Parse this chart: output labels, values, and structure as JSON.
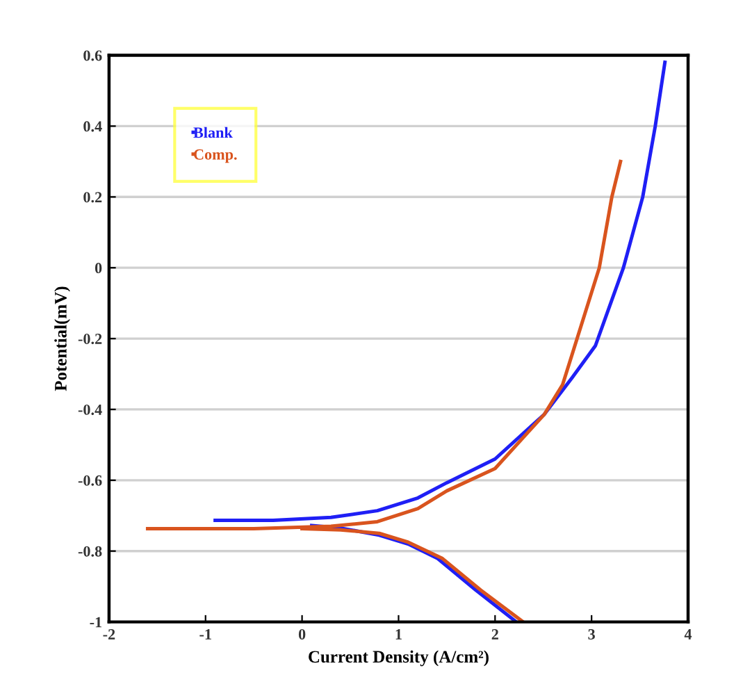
{
  "chart_data": {
    "type": "line",
    "xlabel": "Current Density (A/cm²)",
    "ylabel": "Potential(mV)",
    "xlim": [
      -2,
      4
    ],
    "xticks": [
      -2,
      -1,
      0,
      1,
      2,
      3,
      4
    ],
    "ylim": [
      -1,
      0.6
    ],
    "yticks": [
      -1,
      -0.8,
      -0.6,
      -0.4,
      -0.2,
      0,
      0.2,
      0.4,
      0.6
    ],
    "grid": "y",
    "legend": "top left",
    "marker": "none",
    "line_style": "solid",
    "series": [
      {
        "name": "Blank",
        "color": "#1f1ff5",
        "x": [
          2.22,
          1.8,
          1.4,
          1.1,
          0.8,
          0.4,
          0.1,
          null,
          -0.9,
          -0.3,
          0.3,
          0.78,
          1.2,
          1.5,
          2.0,
          2.51,
          2.8,
          3.04,
          3.33,
          3.53,
          3.66,
          3.76
        ],
        "values": [
          -1,
          -0.91,
          -0.82,
          -0.78,
          -0.755,
          -0.735,
          -0.728,
          null,
          -0.713,
          -0.713,
          -0.705,
          -0.686,
          -0.65,
          -0.607,
          -0.54,
          -0.414,
          -0.31,
          -0.22,
          0,
          0.2,
          0.4,
          0.58
        ]
      },
      {
        "name": "Comp.",
        "color": "#d9541e",
        "x": [
          2.29,
          1.85,
          1.45,
          1.1,
          0.8,
          0.4,
          0,
          null,
          -1.6,
          -0.5,
          0.3,
          0.78,
          1.2,
          1.5,
          2.0,
          2.51,
          2.7,
          2.85,
          3.08,
          3.21,
          3.3
        ],
        "values": [
          -1,
          -0.91,
          -0.82,
          -0.775,
          -0.75,
          -0.74,
          -0.737,
          null,
          -0.737,
          -0.737,
          -0.73,
          -0.717,
          -0.68,
          -0.63,
          -0.567,
          -0.414,
          -0.33,
          -0.2,
          0,
          0.2,
          0.3
        ]
      }
    ]
  }
}
